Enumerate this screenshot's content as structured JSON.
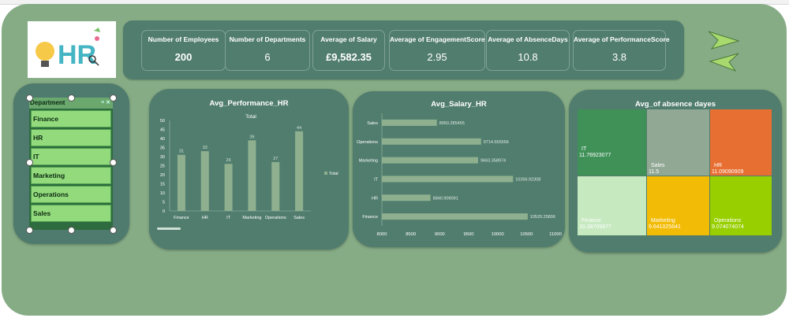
{
  "kpis": [
    {
      "title": "Number of Employees",
      "value": "200"
    },
    {
      "title": "Number of Departments",
      "value": "6"
    },
    {
      "title": "Average of Salary",
      "value": "£9,582.35"
    },
    {
      "title": "Average of EngagementScore",
      "value": "2.95"
    },
    {
      "title": "Average of AbsenceDays",
      "value": "10.8"
    },
    {
      "title": "Average of PerformanceScore",
      "value": "3.8"
    }
  ],
  "logo": {
    "text": "HR"
  },
  "slicer": {
    "header": "Department",
    "items": [
      "Finance",
      "HR",
      "IT",
      "Marketing",
      "Operations",
      "Sales"
    ]
  },
  "colors": {
    "background": "#86ac86",
    "panel": "#517d6e",
    "bar": "#8fb08f",
    "slicer_item": "#93da7c",
    "treemap": [
      "#3f9158",
      "#91a895",
      "#e86f32",
      "#c6e9c0",
      "#f2bb05",
      "#97cf00"
    ]
  },
  "chart_data": [
    {
      "type": "bar",
      "title": "Avg_Performance_HR",
      "subtitle": "Total",
      "legend": "Total",
      "categories": [
        "Finance",
        "HR",
        "IT",
        "Marketing",
        "Operations",
        "Sales"
      ],
      "values": [
        31,
        33,
        26,
        39,
        27,
        44
      ],
      "ylim": [
        0,
        50
      ],
      "yticks": [
        0,
        5,
        10,
        15,
        20,
        25,
        30,
        35,
        40,
        45,
        50
      ]
    },
    {
      "type": "bar",
      "orientation": "horizontal",
      "title": "Avg_Salary_HR",
      "categories": [
        "Sales",
        "Operations",
        "Marketing",
        "IT",
        "HR",
        "Finance"
      ],
      "values": [
        8950.285455,
        9714.555556,
        9663.358974,
        10266.92308,
        8840.909091,
        10520.25806
      ],
      "labels": [
        "8950.285455",
        "9714.555556",
        "9663.358974",
        "10266.92308",
        "8840.909091",
        "10520.25806"
      ],
      "xlim": [
        8000,
        11000
      ],
      "xticks": [
        8000,
        8500,
        9000,
        9500,
        10000,
        10500,
        11000
      ]
    },
    {
      "type": "treemap",
      "title": "Avg_of absence dayes",
      "cells": [
        {
          "name": "IT",
          "value": "11.76923077"
        },
        {
          "name": "Sales",
          "value": "11.5"
        },
        {
          "name": "HR",
          "value": "11.09090909"
        },
        {
          "name": "Finance",
          "value": "10.38709677"
        },
        {
          "name": "Marketing",
          "value": "9.641025641"
        },
        {
          "name": "Operations",
          "value": "9.074074074"
        }
      ]
    }
  ]
}
